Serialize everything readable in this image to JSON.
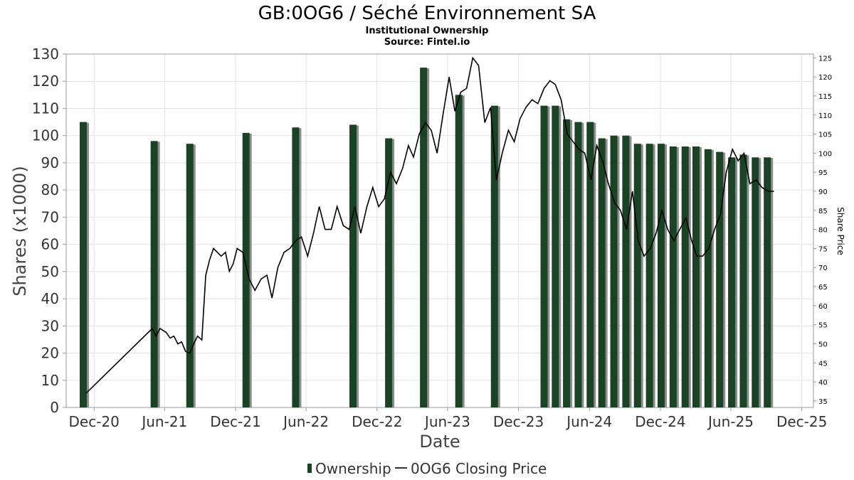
{
  "chart_data": {
    "type": "bar+line",
    "title": "GB:0OG6 / Séché Environnement SA",
    "subtitle": "Institutional Ownership",
    "source": "Source: Fintel.io",
    "xlabel": "Date",
    "ylabel": "Shares (x1000)",
    "y2label": "Share Price",
    "ylim": [
      0,
      130
    ],
    "y2lim": [
      33.3,
      126
    ],
    "xlim": [
      "2020-09-20",
      "2025-12-31"
    ],
    "yticks": [
      "0",
      "10",
      "20",
      "30",
      "40",
      "50",
      "60",
      "70",
      "80",
      "90",
      "100",
      "110",
      "120",
      "130"
    ],
    "y2ticks": [
      "35",
      "40",
      "45",
      "50",
      "55",
      "60",
      "65",
      "70",
      "75",
      "80",
      "85",
      "90",
      "95",
      "100",
      "105",
      "110",
      "115",
      "120",
      "125"
    ],
    "xticks": [
      {
        "label": "Dec-20",
        "date": "2020-12-01"
      },
      {
        "label": "Jun-21",
        "date": "2021-06-01"
      },
      {
        "label": "Dec-21",
        "date": "2021-12-01"
      },
      {
        "label": "Jun-22",
        "date": "2022-06-01"
      },
      {
        "label": "Dec-22",
        "date": "2022-12-01"
      },
      {
        "label": "Jun-23",
        "date": "2023-06-01"
      },
      {
        "label": "Dec-23",
        "date": "2023-12-01"
      },
      {
        "label": "Jun-24",
        "date": "2024-06-01"
      },
      {
        "label": "Dec-24",
        "date": "2024-12-01"
      },
      {
        "label": "Jun-25",
        "date": "2025-06-01"
      },
      {
        "label": "Dec-25",
        "date": "2025-12-01"
      }
    ],
    "legend": {
      "position": "bottom",
      "items": [
        {
          "label": "Ownership",
          "kind": "bar",
          "color": "#1a4325"
        },
        {
          "label": "0OG6 Closing Price",
          "kind": "line",
          "color": "#000000"
        }
      ]
    },
    "grid": true,
    "series": [
      {
        "name": "Ownership",
        "type": "bar",
        "axis": "left",
        "color": "#1a4325",
        "x": [
          "2020-11-03",
          "2021-05-05",
          "2021-08-05",
          "2021-12-28",
          "2022-05-05",
          "2022-09-30",
          "2022-12-31",
          "2023-03-31",
          "2023-06-30",
          "2023-09-30",
          "2024-02-05",
          "2024-03-05",
          "2024-04-03",
          "2024-05-03",
          "2024-06-03",
          "2024-07-03",
          "2024-08-03",
          "2024-09-03",
          "2024-10-03",
          "2024-11-03",
          "2024-12-03",
          "2025-01-03",
          "2025-02-03",
          "2025-03-03",
          "2025-04-03",
          "2025-05-03",
          "2025-06-03",
          "2025-07-03",
          "2025-08-03",
          "2025-09-03"
        ],
        "values": [
          105,
          98,
          97,
          101,
          103,
          104,
          99,
          125,
          115,
          111,
          111,
          111,
          106,
          105,
          105,
          99,
          100,
          100,
          97,
          97,
          97,
          96,
          96,
          96,
          95,
          94,
          92,
          93,
          92,
          92
        ]
      },
      {
        "name": "0OG6 Closing Price",
        "type": "line",
        "axis": "right",
        "color": "#000000",
        "x": [
          "2020-11-10",
          "2021-04-30",
          "2021-05-10",
          "2021-05-20",
          "2021-06-05",
          "2021-06-15",
          "2021-06-25",
          "2021-07-05",
          "2021-07-15",
          "2021-07-25",
          "2021-08-05",
          "2021-08-15",
          "2021-08-25",
          "2021-09-05",
          "2021-09-15",
          "2021-09-25",
          "2021-10-05",
          "2021-10-15",
          "2021-10-25",
          "2021-11-05",
          "2021-11-15",
          "2021-11-25",
          "2021-12-05",
          "2021-12-20",
          "2022-01-05",
          "2022-01-20",
          "2022-02-05",
          "2022-02-20",
          "2022-03-05",
          "2022-03-20",
          "2022-04-05",
          "2022-04-20",
          "2022-05-05",
          "2022-05-20",
          "2022-06-05",
          "2022-06-20",
          "2022-07-05",
          "2022-07-20",
          "2022-08-05",
          "2022-08-20",
          "2022-09-05",
          "2022-09-20",
          "2022-10-05",
          "2022-10-20",
          "2022-11-05",
          "2022-11-20",
          "2022-12-05",
          "2022-12-20",
          "2023-01-05",
          "2023-01-20",
          "2023-02-05",
          "2023-02-20",
          "2023-03-05",
          "2023-03-20",
          "2023-04-05",
          "2023-04-20",
          "2023-05-05",
          "2023-05-20",
          "2023-06-05",
          "2023-06-20",
          "2023-07-05",
          "2023-07-20",
          "2023-08-05",
          "2023-08-20",
          "2023-09-05",
          "2023-09-20",
          "2023-10-05",
          "2023-10-20",
          "2023-11-05",
          "2023-11-20",
          "2023-12-05",
          "2023-12-20",
          "2024-01-05",
          "2024-01-20",
          "2024-02-05",
          "2024-02-20",
          "2024-03-05",
          "2024-03-20",
          "2024-04-05",
          "2024-04-20",
          "2024-05-05",
          "2024-05-20",
          "2024-06-05",
          "2024-06-20",
          "2024-07-05",
          "2024-07-20",
          "2024-08-05",
          "2024-08-20",
          "2024-09-05",
          "2024-09-20",
          "2024-10-05",
          "2024-10-20",
          "2024-11-05",
          "2024-11-20",
          "2024-12-05",
          "2024-12-20",
          "2025-01-05",
          "2025-01-20",
          "2025-02-05",
          "2025-02-20",
          "2025-03-05",
          "2025-03-20",
          "2025-04-05",
          "2025-04-20",
          "2025-05-05",
          "2025-05-20",
          "2025-06-05",
          "2025-06-20",
          "2025-07-05",
          "2025-07-20",
          "2025-08-05",
          "2025-08-20",
          "2025-09-05",
          "2025-09-20"
        ],
        "values": [
          37,
          54,
          52,
          54,
          53,
          51.5,
          52,
          50,
          50.5,
          48,
          47.5,
          50,
          52,
          51,
          68,
          72,
          75,
          74,
          73,
          74,
          69,
          71,
          75,
          74,
          67,
          64,
          67,
          68,
          62,
          70,
          74,
          75,
          77,
          78,
          73,
          79,
          86,
          80,
          80,
          86,
          81,
          80,
          86,
          79,
          86,
          91,
          86,
          88,
          95,
          92,
          96,
          102,
          99,
          105,
          108,
          106,
          100,
          110,
          120,
          111,
          116,
          117,
          125,
          123,
          108,
          112,
          93,
          100,
          106,
          103,
          109,
          112,
          114,
          113,
          117,
          119,
          118,
          114,
          105,
          103,
          101,
          100,
          93,
          102,
          98,
          92,
          87,
          85,
          80,
          90,
          77,
          73,
          75,
          79,
          85,
          80,
          77,
          80,
          83,
          77,
          73,
          73,
          75,
          80,
          84,
          95,
          101,
          98,
          100,
          92,
          93,
          91,
          90,
          90
        ]
      }
    ]
  }
}
